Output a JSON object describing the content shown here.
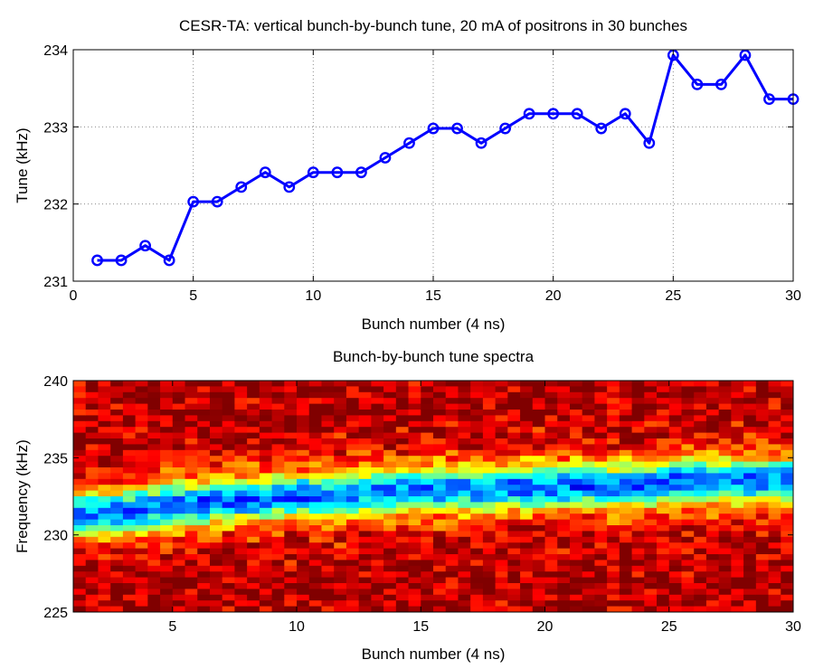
{
  "chart_data": [
    {
      "type": "line",
      "title": "CESR-TA: vertical bunch-by-bunch tune, 20 mA of positrons in 30 bunches",
      "xlabel": "Bunch number (4 ns)",
      "ylabel": "Tune (kHz)",
      "xlim": [
        0,
        30
      ],
      "ylim": [
        231,
        234
      ],
      "xticks": [
        0,
        5,
        10,
        15,
        20,
        25,
        30
      ],
      "yticks": [
        231,
        232,
        233,
        234
      ],
      "grid": true,
      "marker": "circle",
      "color": "#0000ff",
      "x": [
        1,
        2,
        3,
        4,
        5,
        6,
        7,
        8,
        9,
        10,
        11,
        12,
        13,
        14,
        15,
        16,
        17,
        18,
        19,
        20,
        21,
        22,
        23,
        24,
        25,
        26,
        27,
        28,
        29,
        30
      ],
      "y": [
        231.27,
        231.27,
        231.46,
        231.27,
        232.03,
        232.03,
        232.22,
        232.41,
        232.22,
        232.41,
        232.41,
        232.41,
        232.6,
        232.79,
        232.98,
        232.98,
        232.79,
        232.98,
        233.17,
        233.17,
        233.17,
        232.98,
        233.17,
        232.79,
        233.93,
        233.55,
        233.55,
        233.93,
        233.36,
        233.36
      ]
    },
    {
      "type": "heatmap",
      "title": "Bunch-by-bunch tune spectra",
      "xlabel": "Bunch number (4 ns)",
      "ylabel": "Frequency (kHz)",
      "xlim": [
        1,
        30
      ],
      "ylim": [
        225,
        240
      ],
      "xticks": [
        5,
        10,
        15,
        20,
        25,
        30
      ],
      "yticks": [
        225,
        230,
        235,
        240
      ],
      "colormap": "jet",
      "ridge_x": [
        1,
        3,
        5,
        8,
        10,
        13,
        15,
        18,
        20,
        22,
        24,
        25,
        27,
        30
      ],
      "ridge_freq": [
        231.3,
        231.4,
        232.0,
        232.3,
        232.5,
        232.7,
        232.9,
        233.0,
        233.1,
        233.2,
        233.1,
        233.5,
        233.5,
        233.5
      ]
    }
  ]
}
